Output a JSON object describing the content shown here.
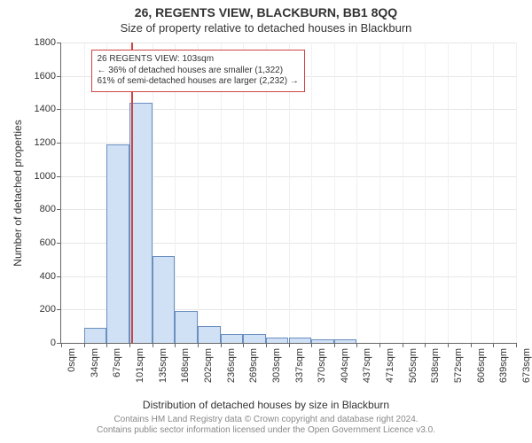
{
  "title": "26, REGENTS VIEW, BLACKBURN, BB1 8QQ",
  "subtitle": "Size of property relative to detached houses in Blackburn",
  "ylabel": "Number of detached properties",
  "xlabel": "Distribution of detached houses by size in Blackburn",
  "credit_line1": "Contains HM Land Registry data © Crown copyright and database right 2024.",
  "credit_line2": "Contains public sector information licensed under the Open Government Licence v3.0.",
  "chart": {
    "type": "histogram",
    "ylim": [
      0,
      1800
    ],
    "ytick_step": 200,
    "xtick_labels": [
      "0sqm",
      "34sqm",
      "67sqm",
      "101sqm",
      "135sqm",
      "168sqm",
      "202sqm",
      "236sqm",
      "269sqm",
      "303sqm",
      "337sqm",
      "370sqm",
      "404sqm",
      "437sqm",
      "471sqm",
      "505sqm",
      "538sqm",
      "572sqm",
      "606sqm",
      "639sqm",
      "673sqm"
    ],
    "bar_values": [
      0,
      90,
      1190,
      1440,
      520,
      190,
      100,
      55,
      55,
      30,
      30,
      22,
      20,
      0,
      0,
      0,
      0,
      0,
      0,
      0
    ],
    "bar_color": "#d0e0f5",
    "bar_border_color": "#6b8fbf",
    "background_color": "#ffffff",
    "grid_color": "#e6e6e6",
    "axis_color": "#666666",
    "marker_color": "#cc4444",
    "marker_x_value": 103,
    "font_family": "Arial",
    "title_fontsize": 14,
    "subtitle_fontsize": 13,
    "label_fontsize": 12,
    "tick_fontsize": 11,
    "annot_fontsize": 10
  },
  "annotation": {
    "line1": "26 REGENTS VIEW: 103sqm",
    "line2": "← 36% of detached houses are smaller (1,322)",
    "line3": "61% of semi-detached houses are larger (2,232) →",
    "border_color": "#cc4444",
    "text_color": "#333333",
    "background_color": "#ffffff"
  }
}
